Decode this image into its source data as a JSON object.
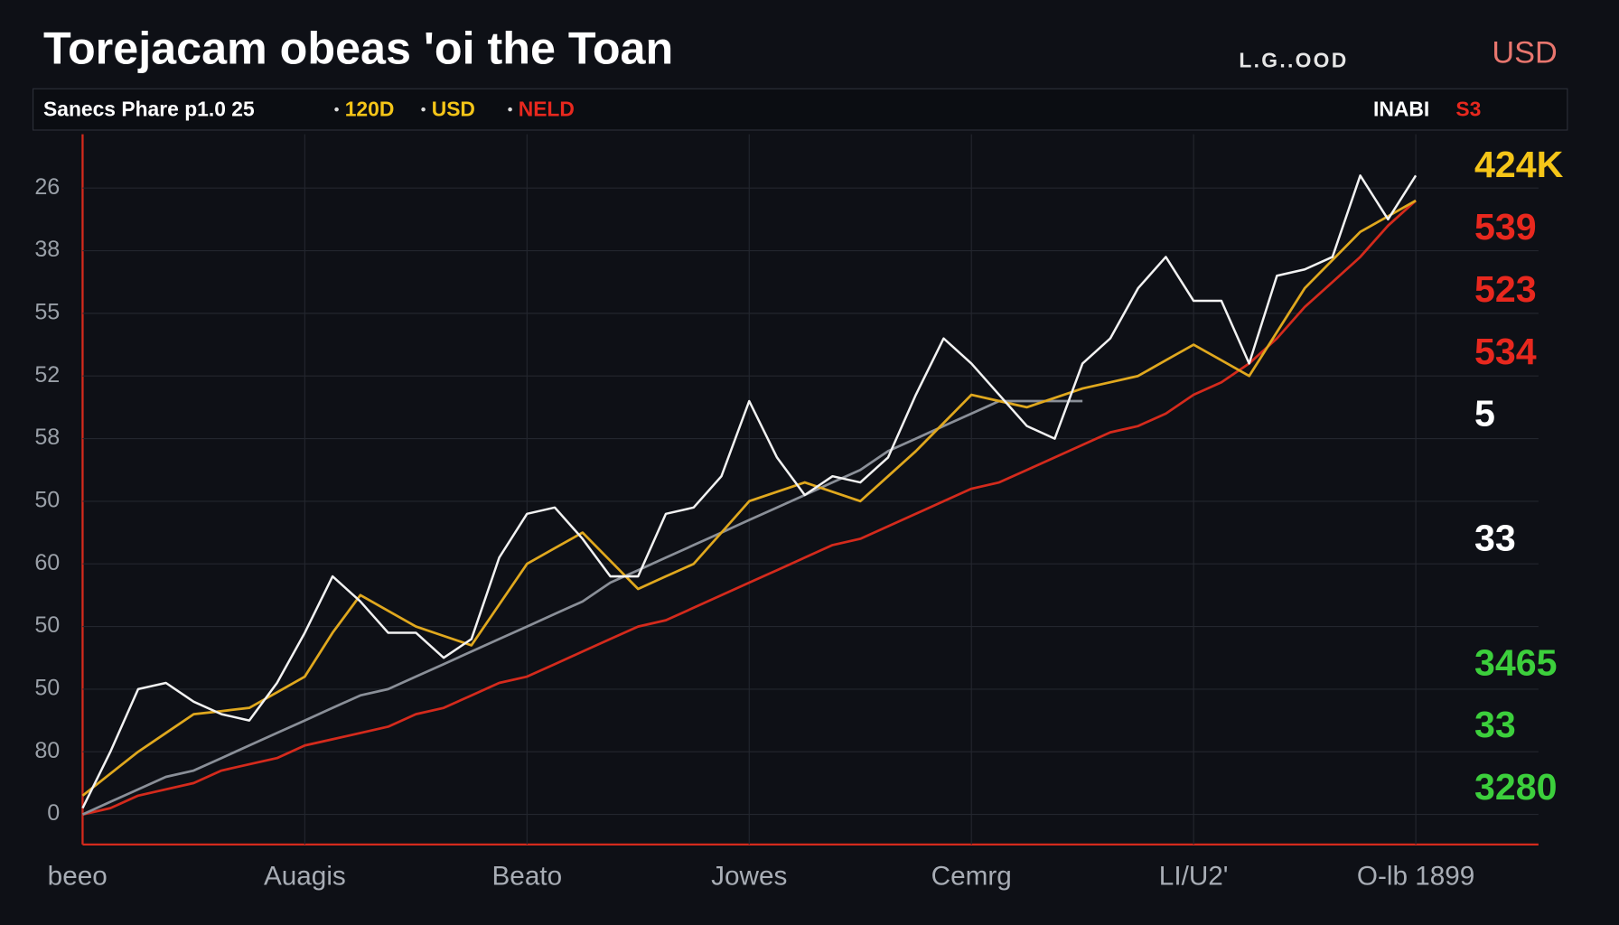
{
  "chart_data": {
    "type": "line",
    "title": "Torejacam obeas 'oi the Toan",
    "header_right": {
      "text": "L.G..OOD",
      "currency": "USD",
      "currency_color": "#e8766e"
    },
    "subheader": {
      "items": [
        {
          "text": "Sanecs Phare p1.0 25",
          "color": "#ffffff"
        },
        {
          "text": "120D",
          "color": "#f5c518"
        },
        {
          "text": "USD",
          "color": "#f5c518"
        },
        {
          "text": "NELD",
          "color": "#e8281e"
        }
      ],
      "right": [
        {
          "text": "INABI",
          "color": "#ffffff"
        },
        {
          "text": "S3",
          "color": "#e8281e"
        }
      ]
    },
    "categories": [
      "beeo",
      null,
      null,
      null,
      null,
      null,
      null,
      null,
      "Auagis",
      null,
      null,
      null,
      null,
      null,
      null,
      null,
      "Beato",
      null,
      null,
      null,
      null,
      null,
      null,
      null,
      "Jowes",
      null,
      null,
      null,
      null,
      null,
      null,
      null,
      "Cemrg",
      null,
      null,
      null,
      null,
      null,
      null,
      null,
      "LI/U2'",
      null,
      null,
      null,
      null,
      null,
      null,
      null,
      "O-lb 1899"
    ],
    "ylim": [
      -0.48,
      10.86
    ],
    "yticks": [
      {
        "value": 10,
        "label": "26"
      },
      {
        "value": 9,
        "label": "38"
      },
      {
        "value": 8,
        "label": "55"
      },
      {
        "value": 7,
        "label": "52"
      },
      {
        "value": 6,
        "label": "58"
      },
      {
        "value": 5,
        "label": "50"
      },
      {
        "value": 4,
        "label": "60"
      },
      {
        "value": 3,
        "label": "50"
      },
      {
        "value": 2,
        "label": "50"
      },
      {
        "value": 1,
        "label": "80"
      },
      0
    ],
    "grid": true,
    "series": [
      {
        "color": "#d42a1c",
        "values": [
          0.0,
          0.1,
          0.3,
          0.4,
          0.5,
          0.7,
          0.8,
          0.9,
          1.1,
          1.2,
          1.3,
          1.4,
          1.6,
          1.7,
          1.9,
          2.1,
          2.2,
          2.4,
          2.6,
          2.8,
          3.0,
          3.1,
          3.3,
          3.5,
          3.7,
          3.9,
          4.1,
          4.3,
          4.4,
          4.6,
          4.8,
          5.0,
          5.2,
          5.3,
          5.5,
          5.7,
          5.9,
          6.1,
          6.2,
          6.4,
          6.7,
          6.9,
          7.2,
          7.6,
          8.1,
          8.5,
          8.9,
          9.4,
          9.8
        ]
      },
      {
        "color": "#8a8f98",
        "values": [
          0.0,
          0.2,
          0.4,
          0.6,
          0.7,
          0.9,
          1.1,
          1.3,
          1.5,
          1.7,
          1.9,
          2.0,
          2.2,
          2.4,
          2.6,
          2.8,
          3.0,
          3.2,
          3.4,
          3.7,
          3.9,
          4.1,
          4.3,
          4.5,
          4.7,
          4.9,
          5.1,
          5.3,
          5.5,
          5.8,
          6.0,
          6.2,
          6.4,
          6.6,
          6.6,
          6.6,
          6.6,
          null,
          null,
          null,
          null,
          null,
          null,
          null,
          null,
          null,
          null,
          null,
          null
        ]
      },
      {
        "color": "#e0a81e",
        "values": [
          0.3,
          0.65,
          1.0,
          1.3,
          1.6,
          1.65,
          1.7,
          1.95,
          2.2,
          2.9,
          3.5,
          3.25,
          3.0,
          2.85,
          2.7,
          3.35,
          4.0,
          4.25,
          4.5,
          4.05,
          3.6,
          3.8,
          4.0,
          4.5,
          5.0,
          5.15,
          5.3,
          5.15,
          5.0,
          5.4,
          5.8,
          6.25,
          6.7,
          6.6,
          6.5,
          6.65,
          6.8,
          6.9,
          7.0,
          7.25,
          7.5,
          7.25,
          7.0,
          7.7,
          8.4,
          8.85,
          9.3,
          9.55,
          9.8
        ]
      },
      {
        "color": "#f2f2f2",
        "values": [
          0.1,
          1.0,
          2.0,
          2.1,
          1.8,
          1.6,
          1.5,
          2.1,
          2.9,
          3.8,
          3.4,
          2.9,
          2.9,
          2.5,
          2.8,
          4.1,
          4.8,
          4.9,
          4.4,
          3.8,
          3.8,
          4.8,
          4.9,
          5.4,
          6.6,
          5.7,
          5.1,
          5.4,
          5.3,
          5.7,
          6.7,
          7.6,
          7.2,
          6.7,
          6.2,
          6.0,
          7.2,
          7.6,
          8.4,
          8.9,
          8.2,
          8.2,
          7.2,
          8.6,
          8.7,
          8.9,
          10.2,
          9.5,
          10.2
        ]
      }
    ],
    "annotations": [
      {
        "text": "424K",
        "color": "#f5c518"
      },
      {
        "text": "539",
        "color": "#e8281e"
      },
      {
        "text": "523",
        "color": "#e8281e"
      },
      {
        "text": "534",
        "color": "#e8281e"
      },
      {
        "text": "5",
        "color": "#ffffff"
      },
      {
        "text": "33",
        "color": "#ffffff"
      },
      {
        "text": "3465",
        "color": "#3ccf3c"
      },
      {
        "text": "33",
        "color": "#3ccf3c"
      },
      {
        "text": "3280",
        "color": "#3ccf3c"
      }
    ]
  }
}
